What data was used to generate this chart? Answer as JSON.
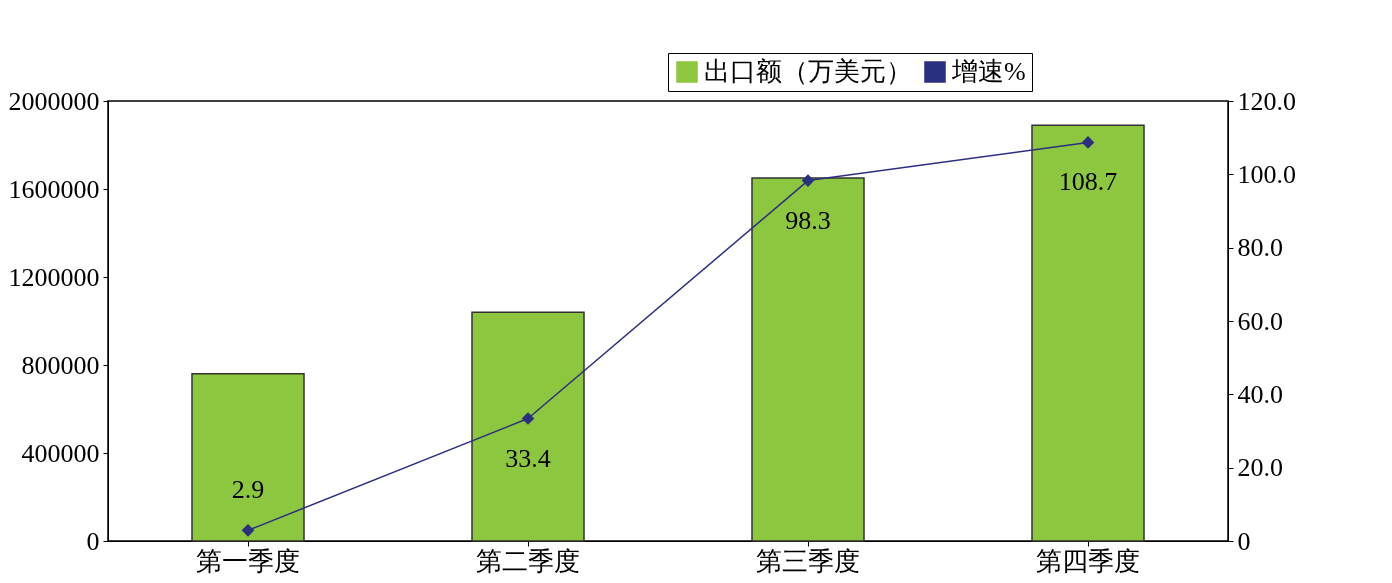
{
  "chart_data": {
    "type": "bar",
    "categories": [
      "第一季度",
      "第二季度",
      "第三季度",
      "第四季度"
    ],
    "series": [
      {
        "name": "出口额（万美元）",
        "color": "#8dc63f",
        "values": [
          760000,
          1040000,
          1650000,
          1890000
        ]
      },
      {
        "name": "增速%",
        "type": "line",
        "axis": "y2",
        "color": "#2b2f80",
        "values": [
          2.9,
          33.4,
          98.3,
          108.7
        ],
        "value_labels": [
          "2.9",
          "33.4",
          "98.3",
          "108.7"
        ]
      }
    ],
    "ylim": [
      0,
      2000000
    ],
    "yticks": [
      0,
      400000,
      800000,
      1200000,
      1600000,
      2000000
    ],
    "y2lim": [
      0,
      120
    ],
    "y2ticks": [
      0,
      {
        "value": 20,
        "label": "20.0"
      },
      {
        "value": 40,
        "label": "40.0"
      },
      {
        "value": 60,
        "label": "60.0"
      },
      {
        "value": 80,
        "label": "80.0"
      },
      {
        "value": 100,
        "label": "100.0"
      },
      {
        "value": 120,
        "label": "120.0"
      }
    ],
    "grid": false,
    "legend": "top right",
    "marker": "diamond",
    "line_style": "solid"
  }
}
